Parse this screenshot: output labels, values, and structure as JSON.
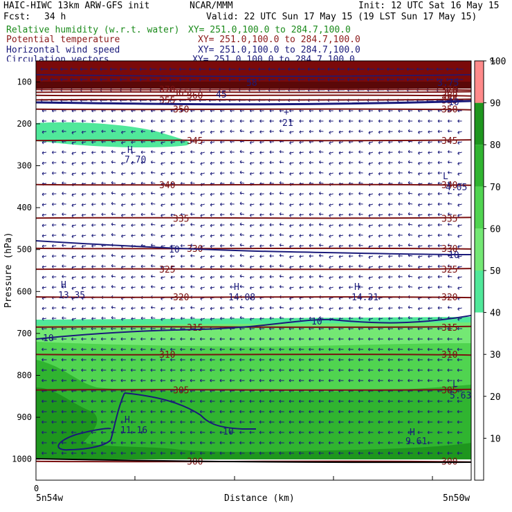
{
  "header": {
    "title": "HAIC-HIWC 13km ARW-GFS init",
    "org": "NCAR/MMM",
    "init": "Init: 12 UTC Sat 16 May 15",
    "fcst_label": "Fcst:",
    "fcst_value": "34 h",
    "valid": "Valid: 22 UTC Sun 17 May 15 (19 LST Sun 17 May 15)"
  },
  "fields": [
    {
      "name": "Relative humidity (w.r.t. water)",
      "xy": "XY= 251.0,100.0 to 284.7,100.0",
      "color": "#1a8a1a"
    },
    {
      "name": "Potential temperature",
      "xy": "XY= 251.0,100.0 to 284.7,100.0",
      "color": "#8b1a1a"
    },
    {
      "name": "Horizontal wind speed",
      "xy": "XY= 251.0,100.0 to 284.7,100.0",
      "color": "#1a1a7a"
    },
    {
      "name": "Circulation vectors",
      "xy": "XY= 251.0,100.0 to 284.7,100.0",
      "color": "#1a1a7a"
    }
  ],
  "chart_data": {
    "type": "heatmap",
    "ylabel": "Pressure (hPa)",
    "xlabel": "Distance (km)",
    "y_ticks": [
      "100",
      "200",
      "300",
      "400",
      "500",
      "600",
      "700",
      "800",
      "900",
      "1000"
    ],
    "y_tick_values": [
      100,
      200,
      300,
      400,
      500,
      600,
      700,
      800,
      900,
      1000
    ],
    "ylim": [
      1050,
      50
    ],
    "x_tick_label": "0",
    "x_left_label": "5n54w",
    "x_right_label": "5n50w",
    "colorbar": {
      "unit": "%",
      "ticks": [
        "10",
        "20",
        "30",
        "40",
        "50",
        "60",
        "70",
        "80",
        "90",
        "100"
      ],
      "colors": [
        "#ffffff",
        "#ffffff",
        "#ffffff",
        "#ffffff",
        "#50e89a",
        "#74e874",
        "#50d450",
        "#30b430",
        "#1e961e",
        "#ff8a8a"
      ]
    },
    "theta_isentropes": [
      {
        "label": "370",
        "p": 118
      },
      {
        "label": "365",
        "p": 125
      },
      {
        "label": "360",
        "p": 132
      },
      {
        "label": "355",
        "p": 143
      },
      {
        "label": "350",
        "p": 165
      },
      {
        "label": "345",
        "p": 240
      },
      {
        "label": "340",
        "p": 345
      },
      {
        "label": "335",
        "p": 425
      },
      {
        "label": "330",
        "p": 497
      },
      {
        "label": "325",
        "p": 547
      },
      {
        "label": "320",
        "p": 613
      },
      {
        "label": "315",
        "p": 685
      },
      {
        "label": "310",
        "p": 750
      },
      {
        "label": "305",
        "p": 835
      },
      {
        "label": "300",
        "p": 1005
      }
    ],
    "wind_contour_label": "10",
    "wind_contour_labels": [
      "10",
      "10",
      "10",
      "10",
      "10",
      "10"
    ],
    "extrema": [
      {
        "kind": "H",
        "value": "7.70"
      },
      {
        "kind": "H",
        "value": "13.35"
      },
      {
        "kind": "H",
        "value": "14.08"
      },
      {
        "kind": "H",
        "value": "14.31"
      },
      {
        "kind": "H",
        "value": "11.16"
      },
      {
        "kind": "H",
        "value": "9.61"
      },
      {
        "kind": "L",
        "value": "5.63"
      },
      {
        "kind": "L",
        "value": "4.05"
      },
      {
        "kind": "L",
        "value": "21"
      }
    ],
    "top_labels": [
      "58",
      "3.75",
      "45"
    ],
    "grid": false
  }
}
